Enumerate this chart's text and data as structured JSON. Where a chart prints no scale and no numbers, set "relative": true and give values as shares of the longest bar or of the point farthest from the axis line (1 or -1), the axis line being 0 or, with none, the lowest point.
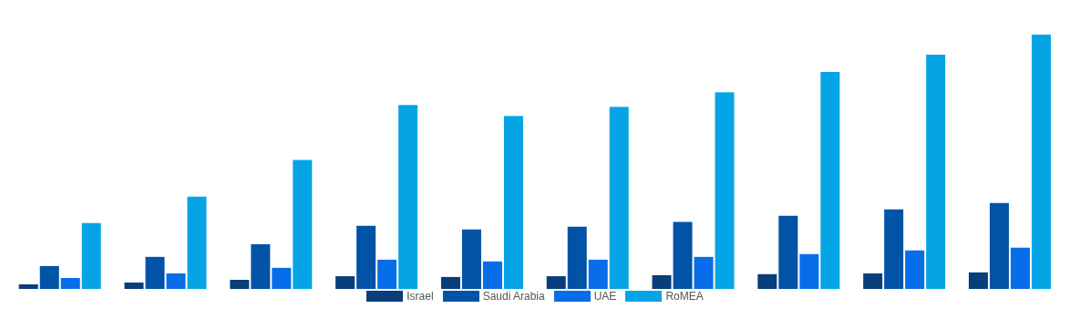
{
  "chart_data": {
    "type": "bar",
    "relative": true,
    "categories": [
      null,
      null,
      null,
      null,
      null,
      null,
      null,
      null,
      null,
      null
    ],
    "series": [
      {
        "name": "Israel",
        "color": "#083e79",
        "values": [
          0.018,
          0.025,
          0.036,
          0.05,
          0.047,
          0.05,
          0.054,
          0.058,
          0.061,
          0.065
        ]
      },
      {
        "name": "Saudi Arabia",
        "color": "#0053a6",
        "values": [
          0.09,
          0.126,
          0.176,
          0.248,
          0.234,
          0.245,
          0.263,
          0.288,
          0.313,
          0.338
        ]
      },
      {
        "name": "UAE",
        "color": "#086de8",
        "values": [
          0.043,
          0.061,
          0.083,
          0.115,
          0.108,
          0.115,
          0.126,
          0.137,
          0.151,
          0.162
        ]
      },
      {
        "name": "RoMEA",
        "color": "#05a5e5",
        "values": [
          0.259,
          0.363,
          0.507,
          0.723,
          0.68,
          0.716,
          0.773,
          0.853,
          0.921,
          1
        ]
      }
    ],
    "legend": "bottom",
    "grid": false
  }
}
